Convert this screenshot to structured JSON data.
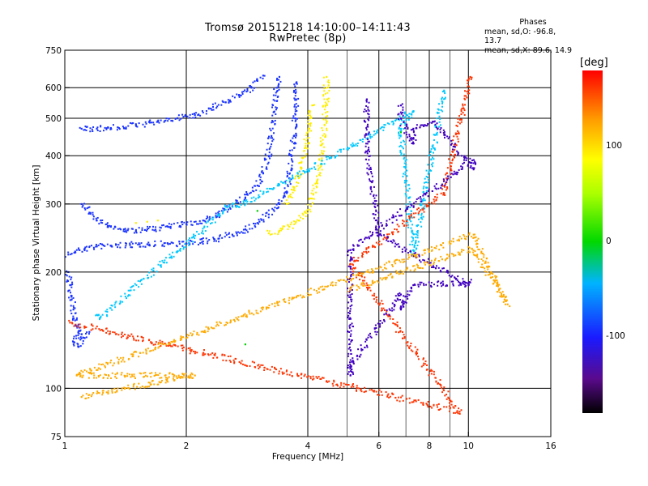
{
  "header": {
    "title_line1": "Tromsø 20151218 14:10:00–14:11:43",
    "title_line2": "RwPretec (8p)"
  },
  "phases_box": {
    "title": "Phases",
    "line_o": "mean, sd,O:  -96.8, 13.7",
    "line_x": "mean, sd,X:  89.6, 14.9"
  },
  "colorbar": {
    "unit_label": "[deg]",
    "ticks": [
      {
        "label": "100",
        "value": 100
      },
      {
        "label": "0",
        "value": 0
      },
      {
        "label": "-100",
        "value": -100
      }
    ],
    "range": [
      -180,
      180
    ]
  },
  "chart_data": {
    "type": "scatter",
    "title": "Tromsø 20151218 14:10:00–14:11:43 RwPretec (8p)",
    "xlabel": "Frequency [MHz]",
    "ylabel": "Stationary phase Virtual Height [km]",
    "x_scale": "log",
    "y_scale": "log",
    "xlim": [
      1,
      16
    ],
    "ylim": [
      75,
      750
    ],
    "x_ticks": [
      {
        "label": "1",
        "value": 1
      },
      {
        "label": "2",
        "value": 2
      },
      {
        "label": "4",
        "value": 4
      },
      {
        "label": "6",
        "value": 6
      },
      {
        "label": "8",
        "value": 8
      },
      {
        "label": "10",
        "value": 10
      },
      {
        "label": "16",
        "value": 16
      }
    ],
    "y_ticks": [
      {
        "label": "75",
        "value": 75
      },
      {
        "label": "100",
        "value": 100
      },
      {
        "label": "200",
        "value": 200
      },
      {
        "label": "300",
        "value": 300
      },
      {
        "label": "400",
        "value": 400
      },
      {
        "label": "500",
        "value": 500
      },
      {
        "label": "600",
        "value": 600
      },
      {
        "label": "750",
        "value": 750
      }
    ],
    "x_grid_major": [
      2,
      4,
      6,
      8,
      10
    ],
    "x_grid_minor": [
      5,
      7,
      9
    ],
    "y_grid": [
      100,
      200,
      300,
      400,
      500,
      600
    ],
    "color_by": "phase [deg]",
    "series": [
      {
        "color": "#1a33ff",
        "points": [
          [
            1.02,
            222
          ],
          [
            1.06,
            226
          ],
          [
            1.12,
            230
          ],
          [
            1.2,
            233
          ],
          [
            1.3,
            234
          ],
          [
            1.45,
            235
          ],
          [
            1.6,
            236
          ],
          [
            1.8,
            237
          ],
          [
            2.0,
            237
          ],
          [
            2.2,
            240
          ],
          [
            2.4,
            244
          ],
          [
            2.6,
            250
          ],
          [
            2.8,
            258
          ],
          [
            3.0,
            268
          ],
          [
            3.2,
            282
          ],
          [
            3.4,
            300
          ],
          [
            3.5,
            320
          ],
          [
            3.6,
            350
          ],
          [
            3.65,
            400
          ],
          [
            3.7,
            450
          ],
          [
            3.72,
            500
          ],
          [
            3.74,
            560
          ],
          [
            3.75,
            620
          ]
        ]
      },
      {
        "color": "#1a33ff",
        "points": [
          [
            1.1,
            300
          ],
          [
            1.15,
            285
          ],
          [
            1.2,
            272
          ],
          [
            1.3,
            262
          ],
          [
            1.4,
            258
          ],
          [
            1.5,
            255
          ],
          [
            1.6,
            258
          ],
          [
            1.8,
            262
          ],
          [
            2.0,
            266
          ],
          [
            2.2,
            272
          ],
          [
            2.4,
            282
          ],
          [
            2.6,
            296
          ],
          [
            2.8,
            312
          ],
          [
            3.0,
            335
          ],
          [
            3.1,
            360
          ],
          [
            3.2,
            400
          ],
          [
            3.25,
            450
          ],
          [
            3.3,
            520
          ],
          [
            3.35,
            600
          ],
          [
            3.4,
            640
          ]
        ]
      },
      {
        "color": "#1a33ff",
        "points": [
          [
            1.1,
            470
          ],
          [
            1.2,
            470
          ],
          [
            1.3,
            472
          ],
          [
            1.5,
            480
          ],
          [
            1.7,
            490
          ],
          [
            1.9,
            500
          ],
          [
            2.1,
            510
          ],
          [
            2.3,
            530
          ],
          [
            2.5,
            550
          ],
          [
            2.7,
            575
          ],
          [
            2.9,
            600
          ],
          [
            3.0,
            625
          ],
          [
            3.1,
            645
          ]
        ]
      },
      {
        "color": "#1a33ff",
        "points": [
          [
            1.02,
            200
          ],
          [
            1.03,
            185
          ],
          [
            1.04,
            170
          ],
          [
            1.05,
            160
          ],
          [
            1.06,
            150
          ],
          [
            1.07,
            145
          ],
          [
            1.08,
            140
          ],
          [
            1.1,
            138
          ],
          [
            1.05,
            132
          ],
          [
            1.08,
            128
          ],
          [
            1.12,
            135
          ],
          [
            1.15,
            140
          ]
        ]
      },
      {
        "color": "#ffee00",
        "points": [
          [
            3.2,
            252
          ],
          [
            3.4,
            256
          ],
          [
            3.6,
            262
          ],
          [
            3.8,
            272
          ],
          [
            4.0,
            290
          ],
          [
            4.1,
            310
          ],
          [
            4.2,
            340
          ],
          [
            4.3,
            380
          ],
          [
            4.35,
            430
          ],
          [
            4.4,
            480
          ],
          [
            4.42,
            540
          ],
          [
            4.45,
            600
          ],
          [
            4.45,
            640
          ]
        ]
      },
      {
        "color": "#ffee00",
        "points": [
          [
            3.55,
            300
          ],
          [
            3.7,
            330
          ],
          [
            3.85,
            370
          ],
          [
            3.95,
            420
          ],
          [
            4.0,
            460
          ],
          [
            4.05,
            500
          ],
          [
            4.1,
            540
          ]
        ]
      },
      {
        "color": "#ffee00",
        "points": [
          [
            1.5,
            268
          ],
          [
            1.6,
            270
          ],
          [
            1.7,
            272
          ]
        ]
      },
      {
        "color": "#00c8ff",
        "points": [
          [
            1.2,
            155
          ],
          [
            1.22,
            152
          ],
          [
            2.6,
            300
          ],
          [
            2.7,
            295
          ],
          [
            7.3,
            520
          ],
          [
            6.8,
            470
          ],
          [
            7.3,
            220
          ],
          [
            8.7,
            590
          ]
        ]
      },
      {
        "color": "#ff3300",
        "points": [
          [
            10.1,
            640
          ],
          [
            8.7,
            320
          ],
          [
            5.1,
            210
          ],
          [
            9.5,
            87
          ],
          [
            1.03,
            148
          ]
        ]
      },
      {
        "color": "#4000c0",
        "points": [
          [
            6.8,
            540
          ],
          [
            6.8,
            500
          ],
          [
            7.3,
            430
          ],
          [
            7.3,
            470
          ],
          [
            7.8,
            480
          ],
          [
            8.2,
            490
          ],
          [
            10.3,
            370
          ],
          [
            10.3,
            390
          ],
          [
            5.1,
            228
          ],
          [
            5.1,
            108
          ],
          [
            5.1,
            114
          ],
          [
            6.8,
            175
          ],
          [
            6.8,
            160
          ],
          [
            7.3,
            185
          ],
          [
            10.1,
            188
          ],
          [
            10.0,
            185
          ],
          [
            6.0,
            250
          ],
          [
            5.6,
            410
          ],
          [
            5.6,
            560
          ]
        ]
      },
      {
        "color": "#00d000",
        "points": [
          [
            3.0,
            288
          ],
          [
            6.8,
            460
          ],
          [
            2.8,
            130
          ]
        ]
      },
      {
        "color": "#ffaa00",
        "points": [
          [
            5.1,
            180
          ],
          [
            10.2,
            230
          ],
          [
            12.5,
            165
          ],
          [
            10.3,
            250
          ],
          [
            1.07,
            108
          ],
          [
            2.1,
            108
          ],
          [
            1.1,
            95
          ]
        ]
      }
    ]
  }
}
